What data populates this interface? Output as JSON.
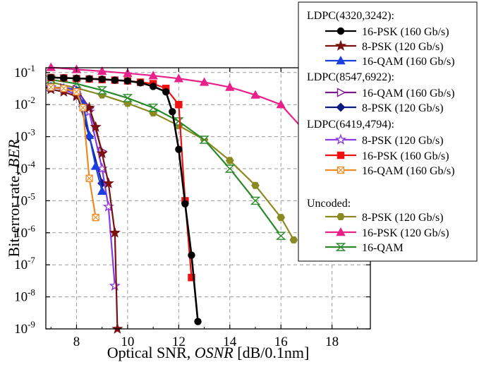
{
  "chart_data": {
    "type": "line",
    "xlabel_prefix": "Optical SNR, ",
    "xlabel_italic": "OSNR",
    "xlabel_suffix": " [dB/0.1nm]",
    "ylabel_prefix": "Bit-error rate, ",
    "ylabel_italic": "BER",
    "xlim": [
      6.8,
      19.5
    ],
    "ylim_log10": [
      -9,
      -0.85
    ],
    "y_scale": "log",
    "x_ticks": [
      8,
      10,
      12,
      14,
      16,
      18
    ],
    "x_tick_labels": [
      "8",
      "10",
      "12",
      "14",
      "16",
      "18"
    ],
    "y_ticks_exp": [
      -1,
      -2,
      -3,
      -4,
      -5,
      -6,
      -7,
      -8,
      -9
    ],
    "y_tick_base": "10",
    "y_tick_exponents": [
      "-1",
      "-2",
      "-3",
      "-4",
      "-5",
      "-6",
      "-7",
      "-8",
      "-9"
    ],
    "grid": true,
    "legend_position": "top-right",
    "groups": [
      {
        "title": "LDPC(4320,3242):",
        "series": [
          0,
          1,
          2
        ]
      },
      {
        "title": "LDPC(8547,6922):",
        "series": [
          3,
          4
        ]
      },
      {
        "title": "LDPC(6419,4794):",
        "series": [
          5,
          6,
          7
        ]
      },
      {
        "title": "Uncoded:",
        "series": [
          8,
          9,
          10
        ]
      }
    ],
    "series": [
      {
        "name": "16-PSK (160 Gb/s)",
        "color": "#000000",
        "marker": "circle",
        "fill": true,
        "x": [
          7.0,
          7.5,
          8.0,
          8.5,
          9.0,
          9.5,
          10.0,
          10.5,
          11.0,
          11.5,
          11.75,
          12.0,
          12.25,
          12.5,
          12.75
        ],
        "y": [
          0.07,
          0.068,
          0.066,
          0.064,
          0.062,
          0.058,
          0.055,
          0.048,
          0.037,
          0.025,
          0.006,
          0.0004,
          8e-06,
          2e-07,
          1.7e-09
        ]
      },
      {
        "name": "8-PSK  (120 Gb/s)",
        "color": "#7a1010",
        "marker": "star",
        "fill": true,
        "x": [
          7.0,
          7.5,
          8.0,
          8.5,
          8.75,
          9.0,
          9.25,
          9.5,
          9.6
        ],
        "y": [
          0.03,
          0.025,
          0.018,
          0.008,
          0.002,
          0.0003,
          3.5e-05,
          1e-06,
          1e-09
        ]
      },
      {
        "name": "16-QAM (160 Gb/s)",
        "color": "#1a3fe0",
        "marker": "triangle",
        "fill": true,
        "x": [
          7.0,
          7.5,
          8.0,
          8.25,
          8.5,
          8.75,
          9.0
        ],
        "y": [
          0.035,
          0.033,
          0.028,
          0.011,
          0.0011,
          0.00012,
          2e-05
        ]
      },
      {
        "name": "16-QAM (160 Gb/s)",
        "color": "#7b1a8c",
        "marker": "triangle-right",
        "fill": false,
        "x": [
          7.0,
          7.5,
          8.0,
          8.5,
          9.0
        ],
        "y": [
          0.035,
          0.033,
          0.03,
          0.008,
          0.00035
        ]
      },
      {
        "name": "8-PSK  (120 Gb/s)",
        "color": "#0a1a80",
        "marker": "diamond",
        "fill": true,
        "x": [
          7.0,
          7.5,
          8.0,
          8.5,
          9.0
        ],
        "y": [
          0.035,
          0.032,
          0.025,
          0.001,
          3.5e-05
        ]
      },
      {
        "name": "8-PSK  (120 Gb/s)",
        "color": "#8a3ae6",
        "marker": "star-open",
        "fill": false,
        "x": [
          7.0,
          7.5,
          8.0,
          8.5,
          9.0,
          9.25,
          9.5
        ],
        "y": [
          0.035,
          0.03,
          0.02,
          0.006,
          0.0001,
          6.5e-06,
          2.2e-08
        ]
      },
      {
        "name": "16-PSK (160 Gb/s)",
        "color": "#ee1111",
        "marker": "square",
        "fill": true,
        "x": [
          7.0,
          7.5,
          8.0,
          8.5,
          9.0,
          9.5,
          10.0,
          10.5,
          11.0,
          11.5,
          12.0,
          12.25,
          12.5
        ],
        "y": [
          0.07,
          0.068,
          0.065,
          0.063,
          0.06,
          0.058,
          0.055,
          0.05,
          0.045,
          0.032,
          0.01,
          1e-05,
          4e-08
        ]
      },
      {
        "name": "16-QAM (160 Gb/s)",
        "color": "#f08a20",
        "marker": "square-x",
        "fill": false,
        "x": [
          7.0,
          7.5,
          8.0,
          8.25,
          8.5,
          8.75
        ],
        "y": [
          0.035,
          0.032,
          0.025,
          0.008,
          5e-05,
          3e-06
        ]
      },
      {
        "name": "8-PSK  (120 Gb/s)",
        "color": "#8a8a22",
        "marker": "hexagon",
        "fill": true,
        "x": [
          7.0,
          8.0,
          9.0,
          10.0,
          11.0,
          12.0,
          13.0,
          14.0,
          15.0,
          16.0,
          16.5
        ],
        "y": [
          0.05,
          0.033,
          0.02,
          0.011,
          0.0055,
          0.0022,
          0.0008,
          0.00018,
          3e-05,
          3e-06,
          6e-07
        ]
      },
      {
        "name": "16-PSK (120 Gb/s)",
        "color": "#e8208a",
        "marker": "triangle-up",
        "fill": true,
        "x": [
          7.0,
          8.0,
          9.0,
          10.0,
          11.0,
          12.0,
          13.0,
          14.0,
          15.0,
          16.0,
          17.0
        ],
        "y": [
          0.145,
          0.125,
          0.11,
          0.095,
          0.08,
          0.065,
          0.05,
          0.035,
          0.02,
          0.01,
          0.0013
        ]
      },
      {
        "name": "16-QAM",
        "color": "#2a8a2a",
        "marker": "hourglass",
        "fill": false,
        "x": [
          7.0,
          8.0,
          9.0,
          10.0,
          11.0,
          12.0,
          13.0,
          14.0,
          15.0,
          16.0
        ],
        "y": [
          0.06,
          0.045,
          0.028,
          0.016,
          0.008,
          0.003,
          0.0008,
          0.0001,
          1e-05,
          8e-07
        ]
      }
    ]
  }
}
